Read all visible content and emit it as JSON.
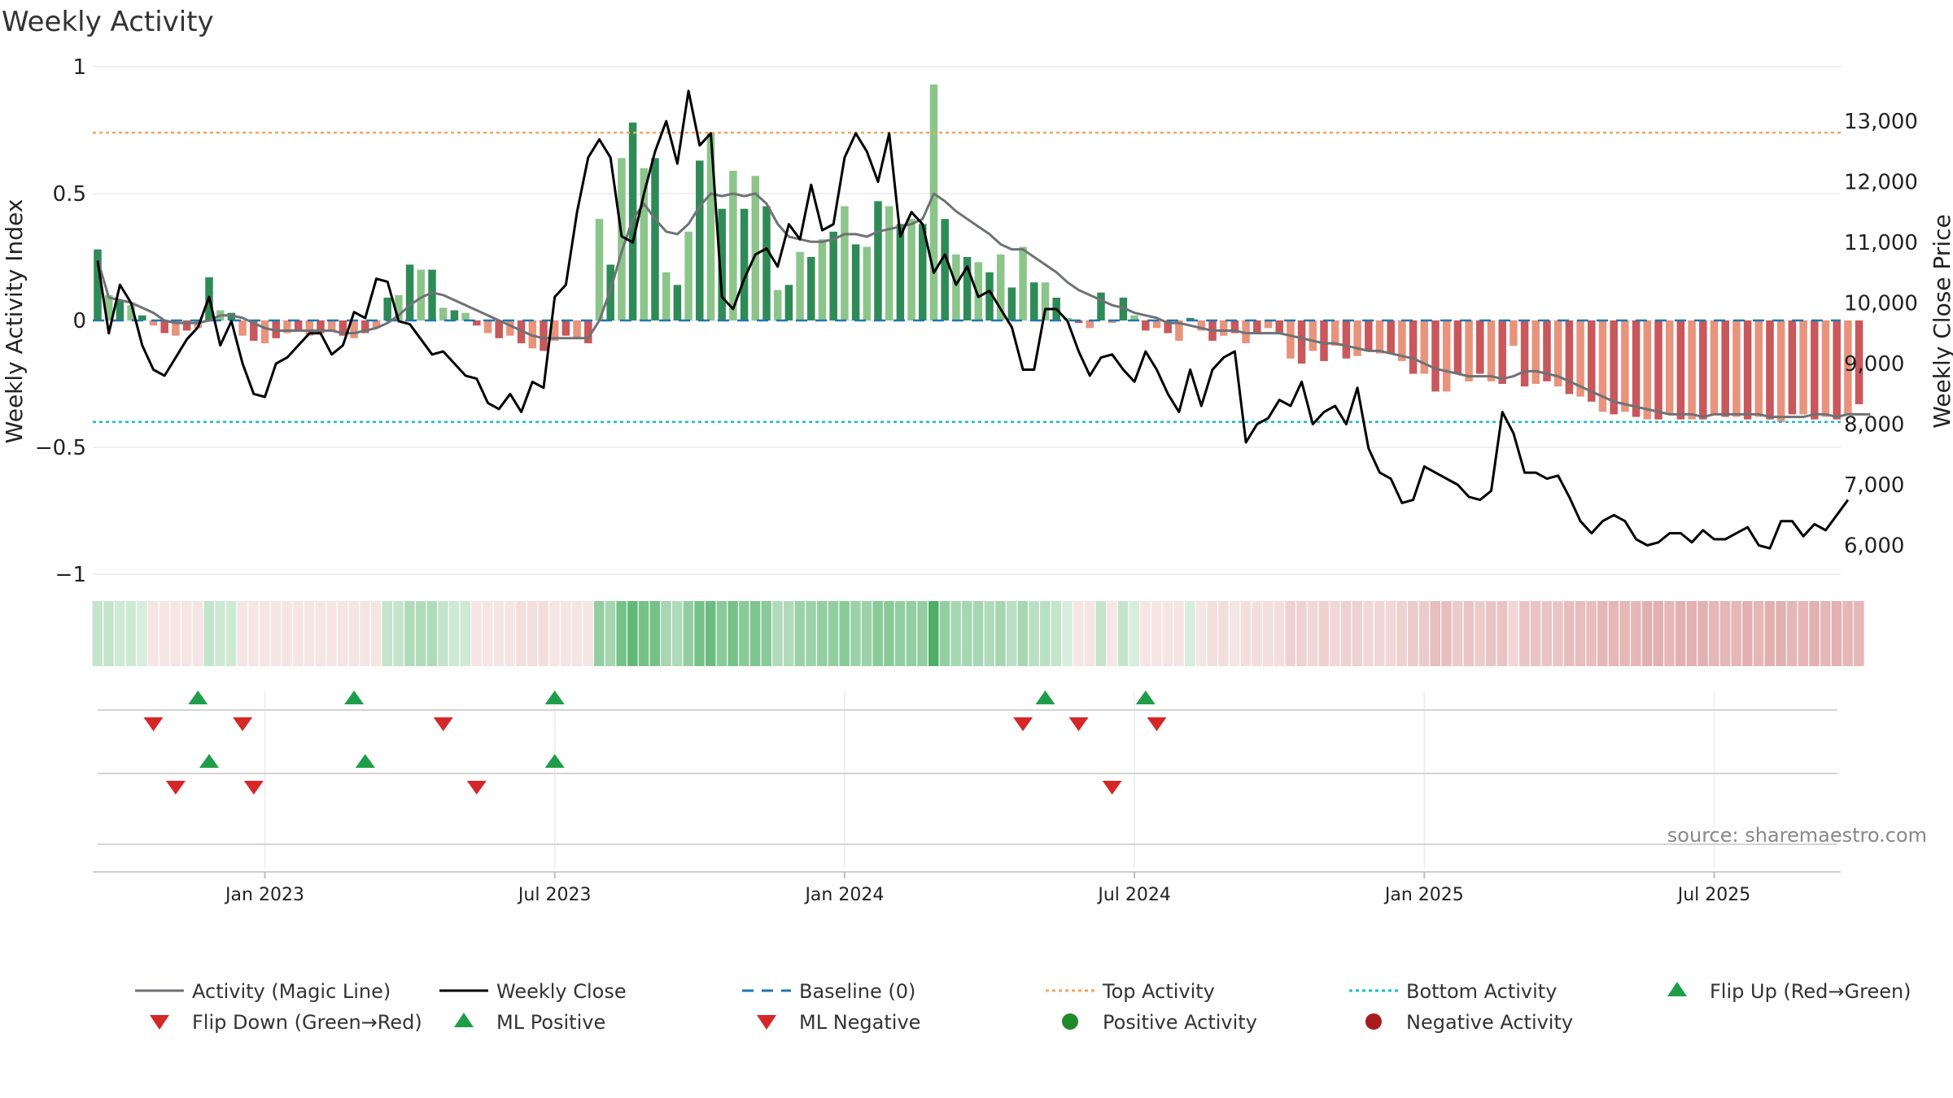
{
  "chart_data": {
    "type": "bar",
    "title": "Weekly Activity",
    "ylabel_left": "Weekly Activity Index",
    "ylabel_right": "Weekly Close Price",
    "source": "source: sharemaestro.com",
    "ylim_left": [
      -1,
      1
    ],
    "ylim_right": [
      5600,
      13900
    ],
    "yticks_left": [
      {
        "v": 1,
        "label": "1"
      },
      {
        "v": 0.5,
        "label": "0.5"
      },
      {
        "v": 0,
        "label": "0"
      },
      {
        "v": -0.5,
        "label": "−0.5"
      },
      {
        "v": -1,
        "label": "−1"
      }
    ],
    "yticks_right": [
      {
        "v": 13000,
        "label": "13,000"
      },
      {
        "v": 12000,
        "label": "12,000"
      },
      {
        "v": 11000,
        "label": "11,000"
      },
      {
        "v": 10000,
        "label": "10,000"
      },
      {
        "v": 9000,
        "label": "9,000"
      },
      {
        "v": 8000,
        "label": "8,000"
      },
      {
        "v": 7000,
        "label": "7,000"
      },
      {
        "v": 6000,
        "label": "6,000"
      }
    ],
    "xticks": [
      {
        "week": 15,
        "label": "Jan 2023"
      },
      {
        "week": 41,
        "label": "Jul 2023"
      },
      {
        "week": 67,
        "label": "Jan 2024"
      },
      {
        "week": 93,
        "label": "Jul 2024"
      },
      {
        "week": 119,
        "label": "Jan 2025"
      },
      {
        "week": 145,
        "label": "Jul 2025"
      }
    ],
    "top_activity": 0.74,
    "bottom_activity": -0.4,
    "colors": {
      "pos_strong": "#2e8b57",
      "pos_light": "#8cc58a",
      "neg_strong": "#c9575b",
      "neg_light": "#e8937c",
      "magic": "#6f7275",
      "close": "#000000",
      "baseline": "#1f77b4",
      "top": "#f4a460",
      "bottom": "#17becf",
      "flip_up": "#1f9e4a",
      "flip_down": "#d62728",
      "pos_dot": "#1f8a2a",
      "neg_dot": "#a81c1c"
    },
    "activity": [
      0.28,
      0.1,
      0.08,
      0.06,
      0.02,
      -0.02,
      -0.05,
      -0.06,
      -0.04,
      -0.03,
      0.17,
      0.04,
      0.03,
      -0.06,
      -0.08,
      -0.09,
      -0.07,
      -0.05,
      -0.04,
      -0.06,
      -0.05,
      -0.04,
      -0.06,
      -0.07,
      -0.05,
      -0.03,
      0.09,
      0.1,
      0.22,
      0.2,
      0.2,
      0.05,
      0.04,
      0.03,
      -0.02,
      -0.05,
      -0.07,
      -0.06,
      -0.09,
      -0.11,
      -0.12,
      -0.08,
      -0.06,
      -0.07,
      -0.09,
      0.4,
      0.22,
      0.64,
      0.78,
      0.6,
      0.64,
      0.19,
      0.14,
      0.35,
      0.63,
      0.74,
      0.44,
      0.59,
      0.44,
      0.57,
      0.45,
      0.12,
      0.14,
      0.27,
      0.25,
      0.32,
      0.35,
      0.45,
      0.3,
      0.29,
      0.47,
      0.45,
      0.38,
      0.4,
      0.38,
      0.93,
      0.4,
      0.26,
      0.25,
      0.23,
      0.19,
      0.26,
      0.13,
      0.29,
      0.15,
      0.15,
      0.09,
      0.01,
      -0.01,
      -0.03,
      0.11,
      -0.01,
      0.09,
      0.02,
      -0.04,
      -0.03,
      -0.05,
      -0.08,
      0.01,
      -0.04,
      -0.08,
      -0.06,
      -0.05,
      -0.09,
      -0.05,
      -0.03,
      -0.05,
      -0.15,
      -0.17,
      -0.12,
      -0.16,
      -0.1,
      -0.15,
      -0.14,
      -0.12,
      -0.13,
      -0.13,
      -0.16,
      -0.21,
      -0.21,
      -0.28,
      -0.28,
      -0.21,
      -0.24,
      -0.21,
      -0.24,
      -0.25,
      -0.1,
      -0.26,
      -0.25,
      -0.24,
      -0.26,
      -0.29,
      -0.3,
      -0.32,
      -0.36,
      -0.37,
      -0.36,
      -0.38,
      -0.39,
      -0.39,
      -0.37,
      -0.39,
      -0.39,
      -0.39,
      -0.37,
      -0.38,
      -0.38,
      -0.39,
      -0.38,
      -0.39,
      -0.4,
      -0.37,
      -0.37,
      -0.39,
      -0.38,
      -0.39,
      -0.37,
      -0.33
    ],
    "magic_line": [
      0.24,
      0.09,
      0.08,
      0.07,
      0.05,
      0.03,
      0,
      -0.01,
      -0.01,
      -0.01,
      0,
      0.02,
      0.02,
      0.01,
      -0.01,
      -0.03,
      -0.04,
      -0.04,
      -0.04,
      -0.04,
      -0.04,
      -0.04,
      -0.05,
      -0.05,
      -0.04,
      -0.03,
      -0.01,
      0.02,
      0.06,
      0.09,
      0.11,
      0.1,
      0.08,
      0.06,
      0.04,
      0.02,
      0,
      -0.02,
      -0.04,
      -0.06,
      -0.07,
      -0.07,
      -0.07,
      -0.07,
      -0.07,
      0,
      0.12,
      0.27,
      0.4,
      0.46,
      0.4,
      0.35,
      0.34,
      0.38,
      0.45,
      0.5,
      0.49,
      0.5,
      0.49,
      0.5,
      0.46,
      0.38,
      0.33,
      0.32,
      0.31,
      0.31,
      0.32,
      0.34,
      0.34,
      0.33,
      0.35,
      0.36,
      0.37,
      0.38,
      0.4,
      0.5,
      0.47,
      0.43,
      0.4,
      0.37,
      0.34,
      0.3,
      0.28,
      0.28,
      0.25,
      0.22,
      0.19,
      0.15,
      0.12,
      0.1,
      0.08,
      0.06,
      0.05,
      0.03,
      0.02,
      0.01,
      -0.01,
      -0.01,
      -0.02,
      -0.03,
      -0.04,
      -0.04,
      -0.04,
      -0.05,
      -0.05,
      -0.05,
      -0.05,
      -0.06,
      -0.07,
      -0.08,
      -0.09,
      -0.09,
      -0.1,
      -0.11,
      -0.12,
      -0.12,
      -0.13,
      -0.14,
      -0.15,
      -0.17,
      -0.19,
      -0.2,
      -0.21,
      -0.22,
      -0.22,
      -0.22,
      -0.23,
      -0.22,
      -0.2,
      -0.2,
      -0.21,
      -0.22,
      -0.24,
      -0.26,
      -0.28,
      -0.3,
      -0.32,
      -0.33,
      -0.34,
      -0.35,
      -0.36,
      -0.37,
      -0.37,
      -0.37,
      -0.38,
      -0.37,
      -0.37,
      -0.37,
      -0.37,
      -0.37,
      -0.38,
      -0.38,
      -0.38,
      -0.38,
      -0.37,
      -0.37,
      -0.38,
      -0.37,
      -0.37,
      -0.37
    ],
    "weekly_close": [
      10700,
      9500,
      10300,
      10000,
      9300,
      8900,
      8800,
      9100,
      9400,
      9600,
      10100,
      9300,
      9700,
      9000,
      8500,
      8450,
      9000,
      9100,
      9300,
      9500,
      9500,
      9150,
      9300,
      9850,
      9750,
      10400,
      10350,
      9700,
      9650,
      9400,
      9150,
      9200,
      9000,
      8800,
      8750,
      8350,
      8250,
      8500,
      8200,
      8700,
      8600,
      10100,
      10300,
      11500,
      12400,
      12700,
      12400,
      11100,
      11000,
      11800,
      12500,
      13000,
      12300,
      13500,
      12600,
      12800,
      10100,
      9900,
      10400,
      10800,
      10900,
      10600,
      11300,
      11050,
      11950,
      11200,
      11300,
      12400,
      12800,
      12500,
      12000,
      12800,
      11100,
      11500,
      11300,
      10500,
      10800,
      10300,
      10600,
      10100,
      10200,
      9900,
      9600,
      8900,
      8900,
      9900,
      9900,
      9700,
      9200,
      8800,
      9100,
      9150,
      8900,
      8700,
      9200,
      8900,
      8500,
      8200,
      8900,
      8300,
      8900,
      9100,
      9200,
      7700,
      8000,
      8100,
      8400,
      8300,
      8700,
      8000,
      8200,
      8300,
      8000,
      8600,
      7600,
      7200,
      7100,
      6700,
      6750,
      7300,
      7200,
      7100,
      7000,
      6800,
      6750,
      6900,
      8200,
      7850,
      7200,
      7200,
      7100,
      7150,
      6800,
      6400,
      6200,
      6400,
      6500,
      6400,
      6100,
      6000,
      6050,
      6200,
      6200,
      6050,
      6250,
      6100,
      6100,
      6200,
      6300,
      6000,
      5950,
      6400,
      6400,
      6150,
      6350,
      6250,
      6500,
      6750
    ],
    "strip_intensity": [
      0.3,
      0.3,
      0.25,
      0.25,
      0.2,
      0.2,
      0.2,
      0.2,
      0.2,
      0.2,
      0.3,
      0.25,
      0.25,
      0.2,
      0.2,
      0.2,
      0.2,
      0.2,
      0.2,
      0.2,
      0.2,
      0.2,
      0.2,
      0.2,
      0.2,
      0.2,
      0.3,
      0.3,
      0.4,
      0.4,
      0.4,
      0.3,
      0.25,
      0.25,
      0.2,
      0.2,
      0.2,
      0.2,
      0.25,
      0.25,
      0.25,
      0.2,
      0.2,
      0.2,
      0.2,
      0.55,
      0.45,
      0.7,
      0.8,
      0.7,
      0.7,
      0.45,
      0.4,
      0.55,
      0.7,
      0.75,
      0.6,
      0.7,
      0.6,
      0.65,
      0.6,
      0.4,
      0.4,
      0.5,
      0.5,
      0.55,
      0.55,
      0.6,
      0.5,
      0.5,
      0.6,
      0.6,
      0.55,
      0.55,
      0.55,
      0.9,
      0.55,
      0.45,
      0.45,
      0.45,
      0.4,
      0.45,
      0.35,
      0.45,
      0.35,
      0.35,
      0.3,
      0.2,
      0.2,
      0.2,
      0.3,
      0.2,
      0.3,
      0.2,
      0.2,
      0.2,
      0.2,
      0.2,
      0.2,
      0.2,
      0.25,
      0.25,
      0.2,
      0.25,
      0.25,
      0.25,
      0.25,
      0.35,
      0.35,
      0.3,
      0.35,
      0.3,
      0.35,
      0.35,
      0.3,
      0.3,
      0.3,
      0.35,
      0.4,
      0.4,
      0.5,
      0.5,
      0.4,
      0.45,
      0.4,
      0.45,
      0.45,
      0.3,
      0.45,
      0.45,
      0.45,
      0.45,
      0.5,
      0.5,
      0.5,
      0.55,
      0.55,
      0.55,
      0.55,
      0.6,
      0.6,
      0.55,
      0.6,
      0.6,
      0.6,
      0.55,
      0.55,
      0.55,
      0.6,
      0.55,
      0.6,
      0.6,
      0.55,
      0.55,
      0.6,
      0.55,
      0.6,
      0.55,
      0.55
    ],
    "events": {
      "flip_up": [
        9,
        23,
        41,
        85,
        94
      ],
      "flip_down": [
        5,
        13,
        31,
        83,
        88,
        95
      ],
      "ml_positive": [
        10,
        24,
        41
      ],
      "ml_negative": [
        7,
        14,
        34,
        91
      ]
    },
    "legend": [
      "Activity (Magic Line)",
      "Weekly Close",
      "Baseline (0)",
      "Top Activity",
      "Bottom Activity",
      "Flip Up (Red→Green)",
      "Flip Down (Green→Red)",
      "ML Positive",
      "ML Negative",
      "Positive Activity",
      "Negative Activity"
    ]
  }
}
